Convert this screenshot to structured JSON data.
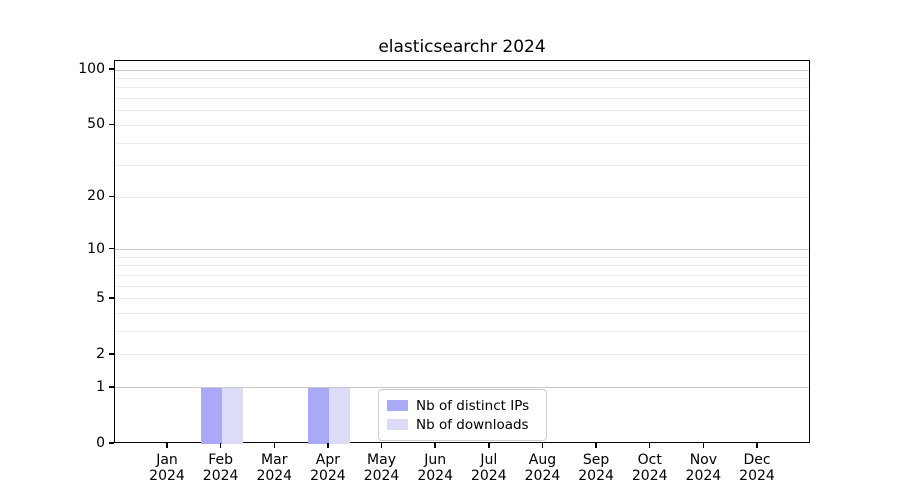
{
  "chart_data": {
    "type": "bar",
    "title": "elasticsearchr 2024",
    "xlabel": "",
    "ylabel": "",
    "categories": [
      "Jan",
      "Feb",
      "Mar",
      "Apr",
      "May",
      "Jun",
      "Jul",
      "Aug",
      "Sep",
      "Oct",
      "Nov",
      "Dec"
    ],
    "x_tick_year": "2024",
    "series": [
      {
        "name": "Nb of distinct IPs",
        "color": "#a9a9f7",
        "values": [
          0,
          1,
          0,
          1,
          0,
          0,
          0,
          0,
          0,
          0,
          0,
          0
        ]
      },
      {
        "name": "Nb of downloads",
        "color": "#dcdcf9",
        "values": [
          0,
          1,
          0,
          1,
          0,
          0,
          0,
          0,
          0,
          0,
          0,
          0
        ]
      }
    ],
    "yscale": "log10(1+value)",
    "ylim": [
      0,
      113
    ],
    "y_ticks": [
      100,
      50,
      20,
      10,
      5,
      2,
      1,
      0
    ],
    "y_major_grid": [
      1,
      10,
      100
    ],
    "y_minor_grid": [
      2,
      3,
      4,
      5,
      6,
      7,
      8,
      9,
      20,
      30,
      40,
      50,
      60,
      70,
      80,
      90
    ],
    "grid": "on",
    "legend_position": "lower center inside plot",
    "colors": {
      "major_grid": "#c9c9c9",
      "minor_grid": "#ededed",
      "spine": "#000000",
      "background": "#ffffff",
      "text": "#000000"
    }
  }
}
